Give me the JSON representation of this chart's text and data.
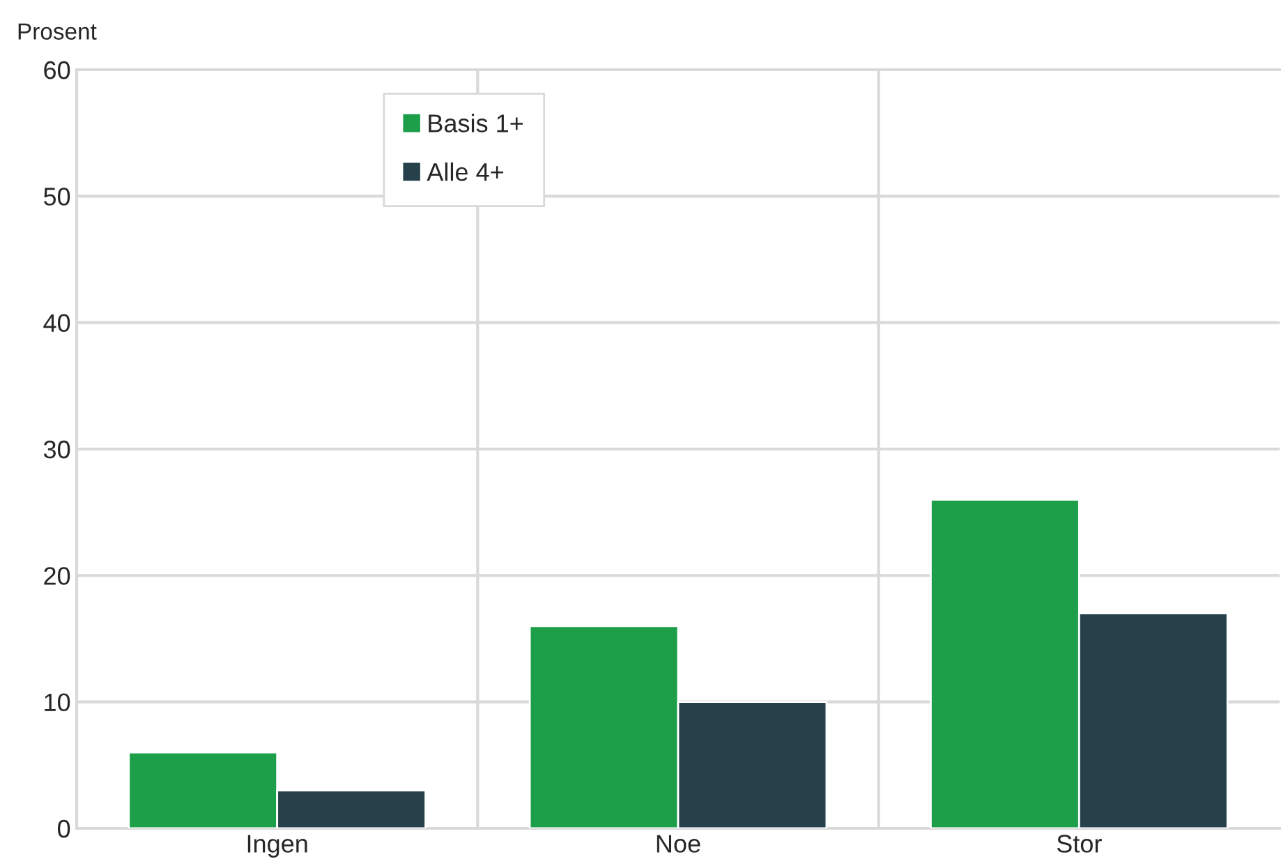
{
  "chart_data": {
    "type": "bar",
    "ylabel": "Prosent",
    "categories": [
      "Ingen",
      "Noe",
      "Stor"
    ],
    "series": [
      {
        "name": "Basis 1+",
        "color": "#1d9f4a",
        "values": [
          6,
          16,
          26
        ]
      },
      {
        "name": "Alle 4+",
        "color": "#27414a",
        "values": [
          3,
          10,
          17
        ]
      }
    ],
    "ylim": [
      0,
      60
    ],
    "yticks": [
      0,
      10,
      20,
      30,
      40,
      50,
      60
    ],
    "grid": true,
    "legend": "top left"
  }
}
